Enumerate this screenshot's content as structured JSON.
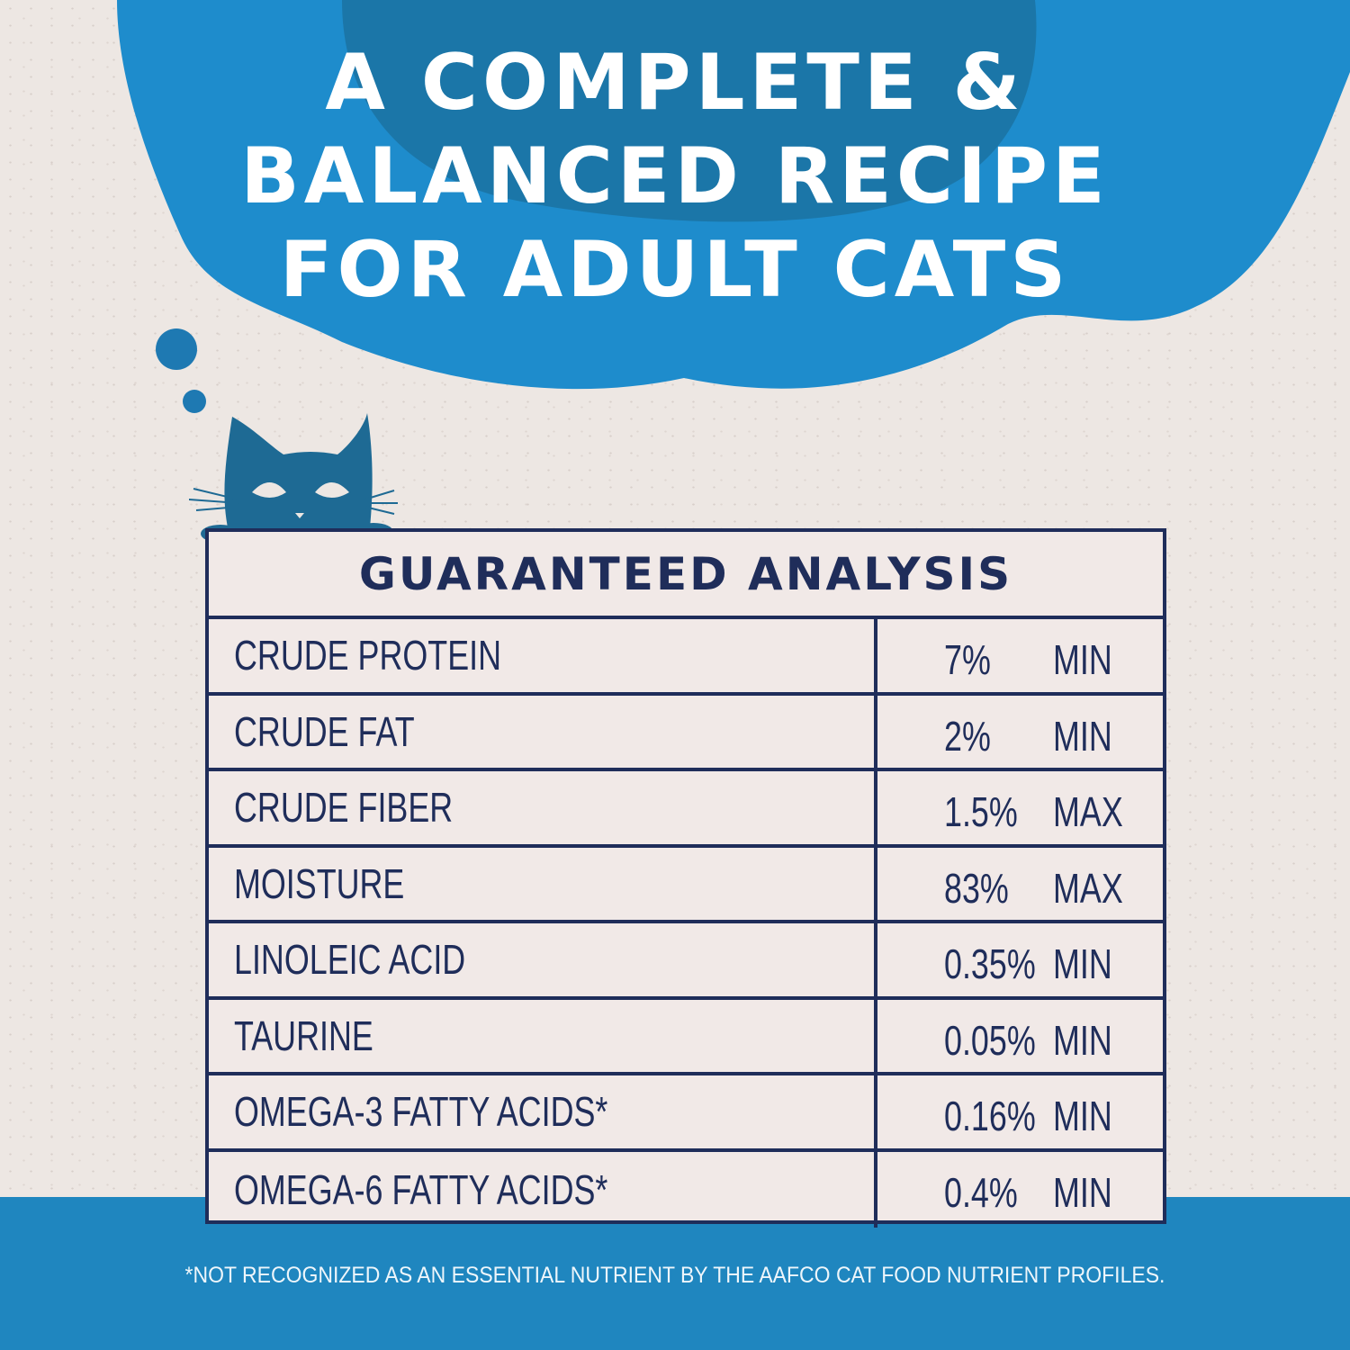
{
  "headline": [
    "A COMPLETE &",
    "BALANCED RECIPE",
    "FOR ADULT CATS"
  ],
  "colors": {
    "background": "#ede7e3",
    "cloud": "#1e8ccc",
    "cloud_dark": "#1b6f9c",
    "cat": "#1e6a94",
    "table_border": "#1f2d5a",
    "bottom_band": "#1f86bf"
  },
  "icons": [
    "thought-bubble-icon",
    "cat-peeking-icon"
  ],
  "table": {
    "title": "GUARANTEED ANALYSIS",
    "rows": [
      {
        "name": "CRUDE PROTEIN",
        "amount": "7%",
        "unit": "MIN"
      },
      {
        "name": "CRUDE FAT",
        "amount": "2%",
        "unit": "MIN"
      },
      {
        "name": "CRUDE FIBER",
        "amount": "1.5%",
        "unit": "MAX"
      },
      {
        "name": "MOISTURE",
        "amount": "83%",
        "unit": "MAX"
      },
      {
        "name": "LINOLEIC ACID",
        "amount": "0.35%",
        "unit": "MIN"
      },
      {
        "name": "TAURINE",
        "amount": "0.05%",
        "unit": "MIN"
      },
      {
        "name": "OMEGA-3 FATTY ACIDS*",
        "amount": "0.16%",
        "unit": "MIN"
      },
      {
        "name": "OMEGA-6 FATTY ACIDS*",
        "amount": "0.4%",
        "unit": "MIN"
      }
    ]
  },
  "footnote": "*NOT RECOGNIZED AS AN ESSENTIAL NUTRIENT BY THE AAFCO CAT FOOD NUTRIENT PROFILES."
}
